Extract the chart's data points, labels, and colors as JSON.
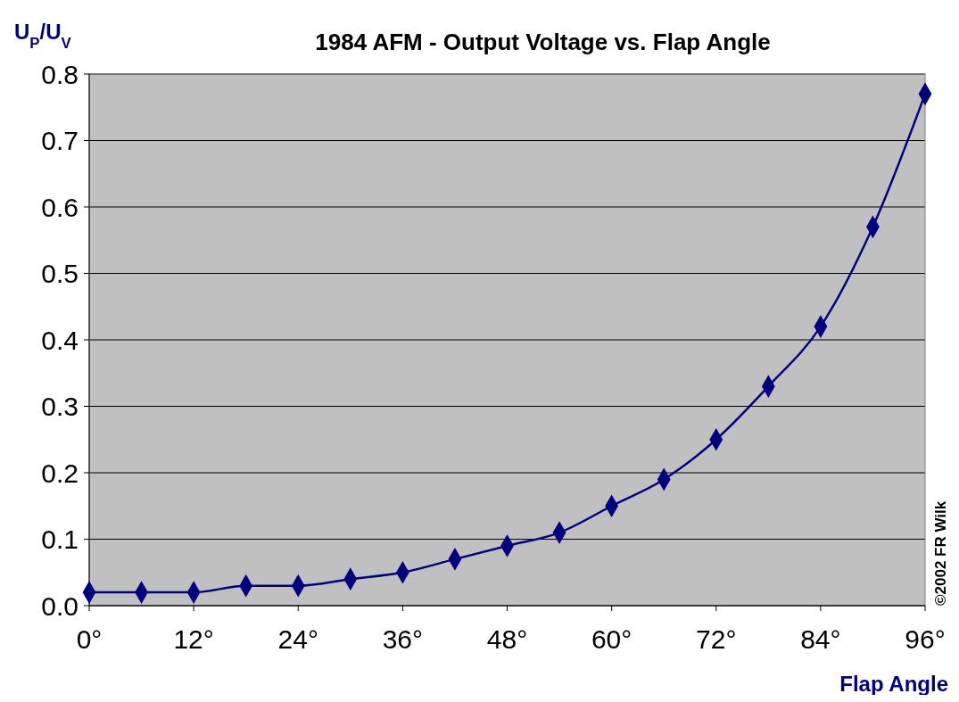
{
  "chart_data": {
    "type": "line",
    "title": "1984 AFM - Output Voltage vs. Flap Angle",
    "xlabel": "Flap Angle",
    "ylabel": "U$_{P}$/U$_{V}$",
    "annotations": [
      "©2002  FR Wilk"
    ],
    "x": [
      0,
      6,
      12,
      18,
      24,
      30,
      36,
      42,
      48,
      54,
      60,
      66,
      72,
      78,
      84,
      90,
      96
    ],
    "series": [
      {
        "color": "#000080",
        "values": [
          0.02,
          0.02,
          0.02,
          0.03,
          0.03,
          0.04,
          0.05,
          0.07,
          0.09,
          0.11,
          0.15,
          0.19,
          0.25,
          0.33,
          0.42,
          0.57,
          0.77
        ]
      }
    ],
    "xlim": [
      0,
      96
    ],
    "xticks": [
      {
        "value": 0,
        "label": "0°"
      },
      {
        "value": 12,
        "label": "12°"
      },
      {
        "value": 24,
        "label": "24°"
      },
      {
        "value": 36,
        "label": "36°"
      },
      {
        "value": 48,
        "label": "48°"
      },
      {
        "value": 60,
        "label": "60°"
      },
      {
        "value": 72,
        "label": "72°"
      },
      {
        "value": 84,
        "label": "84°"
      },
      {
        "value": 96,
        "label": "96°"
      }
    ],
    "ylim": [
      0,
      0.8
    ],
    "yticks": [
      {
        "value": 0,
        "label": "0.0"
      },
      0.1,
      0.2,
      0.3,
      0.4,
      0.5,
      0.6,
      0.7,
      0.8
    ],
    "grid": "y",
    "marker": "diamond",
    "line_style": "solid"
  }
}
